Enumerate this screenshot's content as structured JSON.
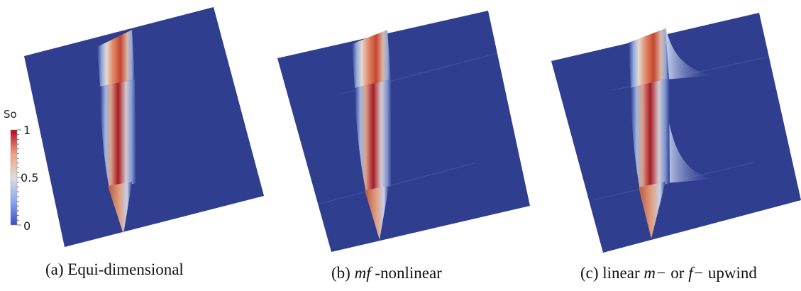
{
  "colorbar": {
    "title": "So",
    "ticks": [
      {
        "label": "1",
        "value": 1
      },
      {
        "label": "0.5",
        "value": 0.5
      },
      {
        "label": "0",
        "value": 0
      }
    ],
    "range": [
      0,
      1
    ],
    "colors": {
      "low": "#3b4cc0",
      "mid": "#dddddd",
      "high": "#b40426"
    }
  },
  "background_color": "#2f3e8f",
  "panels": [
    {
      "id": "a",
      "caption_prefix": "(a) ",
      "caption_math": "",
      "caption_suffix": "Equi-dimensional"
    },
    {
      "id": "b",
      "caption_prefix": "(b) ",
      "caption_math": "mf",
      "caption_suffix": " -nonlinear"
    },
    {
      "id": "c",
      "caption_prefix": "(c) linear ",
      "caption_math": "m−",
      "caption_middle": " or ",
      "caption_math2": "f−",
      "caption_suffix": " upwind"
    }
  ]
}
